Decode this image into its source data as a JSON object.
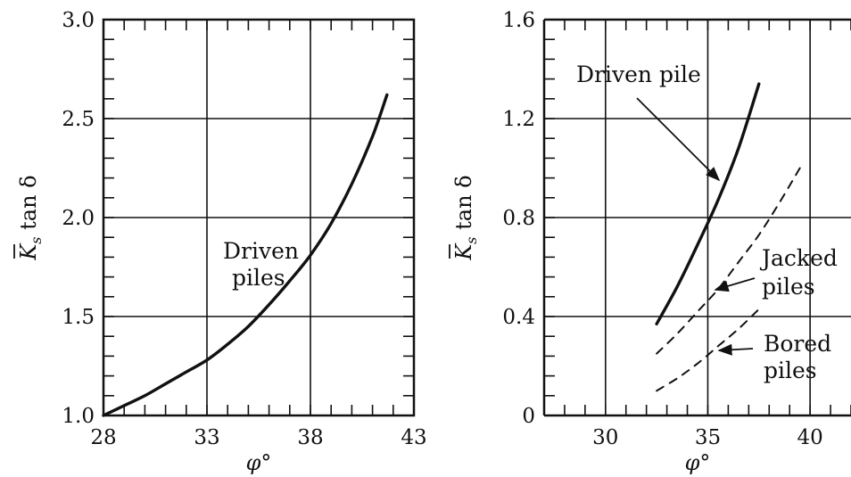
{
  "chart_data": [
    {
      "type": "line",
      "xlabel": "φ°",
      "ylabel_main": "K",
      "ylabel_sub": "s",
      "ylabel_rest": " tan δ",
      "xlim": [
        28,
        43
      ],
      "ylim": [
        1.0,
        3.0
      ],
      "x_ticks": [
        28,
        33,
        38,
        43
      ],
      "x_tick_labels": [
        "28",
        "33",
        "38",
        "43"
      ],
      "y_ticks": [
        1.0,
        1.5,
        2.0,
        2.5,
        3.0
      ],
      "y_tick_labels": [
        "1.0",
        "1.5",
        "2.0",
        "2.5",
        "3.0"
      ],
      "grid": true,
      "series": [
        {
          "style": "solid",
          "x": [
            28.0,
            29.0,
            30.0,
            31.0,
            32.0,
            33.0,
            34.0,
            35.0,
            36.0,
            37.0,
            38.0,
            39.0,
            40.0,
            41.0,
            41.7
          ],
          "y": [
            1.0,
            1.05,
            1.1,
            1.16,
            1.22,
            1.28,
            1.36,
            1.45,
            1.56,
            1.68,
            1.81,
            1.97,
            2.17,
            2.41,
            2.62
          ]
        }
      ],
      "annotations": [
        {
          "lines": [
            "Driven",
            "piles"
          ]
        }
      ]
    },
    {
      "type": "line",
      "xlabel": "φ°",
      "ylabel_main": "K",
      "ylabel_sub": "s",
      "ylabel_rest": " tan δ",
      "xlim": [
        27,
        42
      ],
      "ylim": [
        0,
        1.6
      ],
      "x_ticks": [
        30,
        35,
        40
      ],
      "x_tick_labels": [
        "30",
        "35",
        "40"
      ],
      "y_ticks": [
        0,
        0.4,
        0.8,
        1.2,
        1.6
      ],
      "y_tick_labels": [
        "0",
        "0.4",
        "0.8",
        "1.2",
        "1.6"
      ],
      "grid": true,
      "series": [
        {
          "style": "solid",
          "x": [
            32.5,
            33.5,
            34.5,
            35.5,
            36.5,
            37.5
          ],
          "y": [
            0.37,
            0.52,
            0.69,
            0.87,
            1.08,
            1.34
          ]
        },
        {
          "style": "dashed",
          "x": [
            32.5,
            33.5,
            34.5,
            35.5,
            36.5,
            37.5,
            38.5,
            39.5
          ],
          "y": [
            0.25,
            0.33,
            0.42,
            0.51,
            0.62,
            0.73,
            0.86,
            1.0
          ]
        },
        {
          "style": "dashed",
          "x": [
            32.5,
            33.5,
            34.5,
            35.5,
            36.5,
            37.5
          ],
          "y": [
            0.1,
            0.15,
            0.21,
            0.28,
            0.35,
            0.43
          ]
        }
      ],
      "annotations": [
        {
          "lines": [
            "Driven pile"
          ]
        },
        {
          "lines": [
            "Jacked",
            "piles"
          ]
        },
        {
          "lines": [
            "Bored",
            "piles"
          ]
        }
      ]
    }
  ]
}
